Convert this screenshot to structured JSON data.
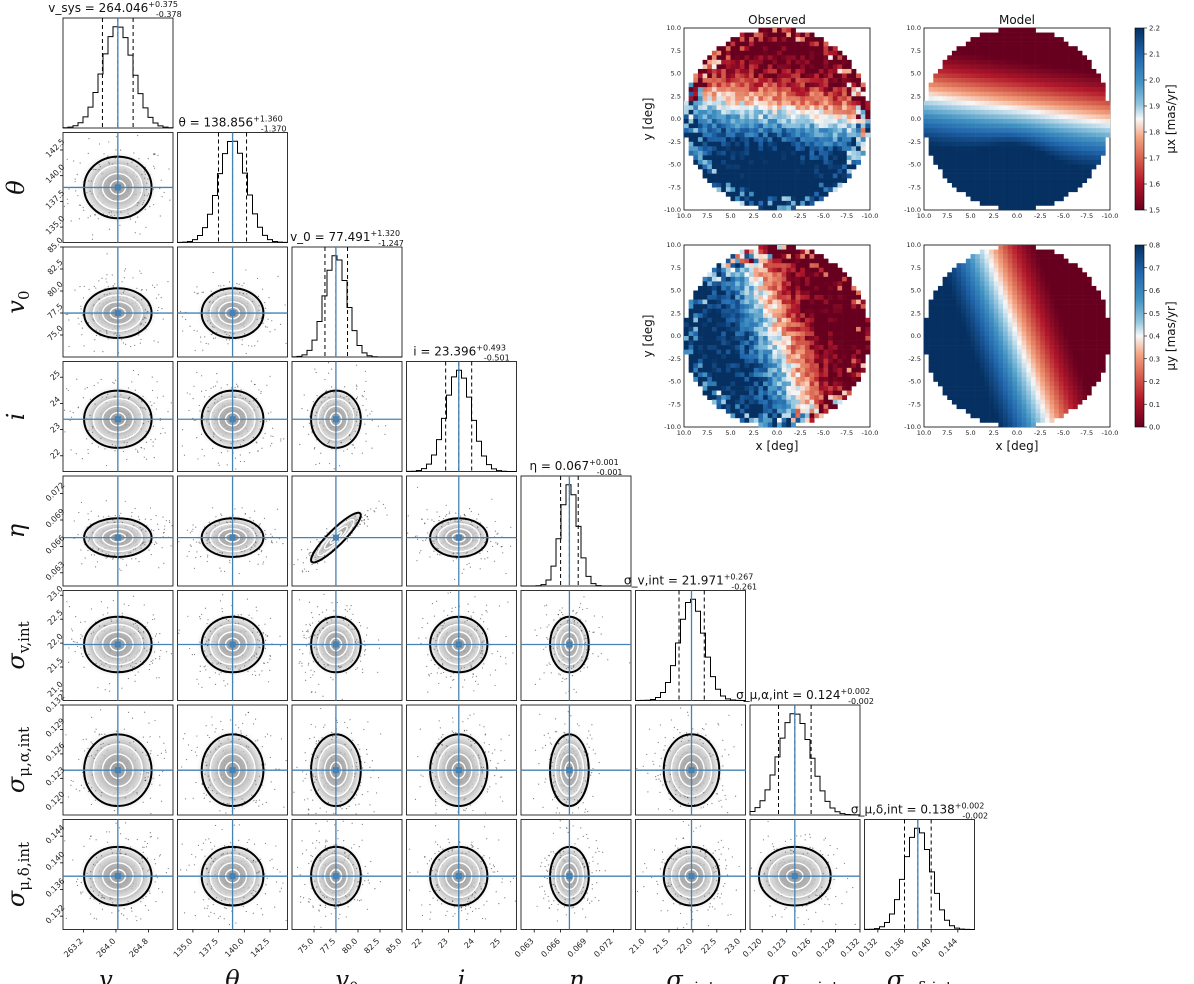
{
  "chart_data": [
    {
      "type": "scatter",
      "kind": "corner-plot",
      "parameters": [
        {
          "label": "v_sys",
          "median": 264.046,
          "plus": 0.375,
          "minus": 0.378,
          "title": "v_sys = 264.046 +0.375 -0.378",
          "range": [
            262.7,
            265.4
          ],
          "ticks": [
            "263.2",
            "264.0",
            "264.8"
          ],
          "tick_values": [
            263.2,
            264.0,
            264.8
          ]
        },
        {
          "label": "θ",
          "median": 138.856,
          "plus": 1.36,
          "minus": 1.37,
          "title": "θ = 138.856 +1.360 -1.370",
          "range": [
            133.5,
            144.2
          ],
          "ticks": [
            "135.0",
            "137.5",
            "140.0",
            "142.5"
          ],
          "tick_values": [
            135.0,
            137.5,
            140.0,
            142.5
          ]
        },
        {
          "label": "v_0",
          "median": 77.491,
          "plus": 1.32,
          "minus": 1.247,
          "title": "v_0 = 77.491 +1.320 -1.247",
          "range": [
            72.5,
            85.0
          ],
          "ticks": [
            "75.0",
            "77.5",
            "80.0",
            "82.5",
            "85.0"
          ],
          "tick_values": [
            75.0,
            77.5,
            80.0,
            82.5,
            85.0
          ]
        },
        {
          "label": "i",
          "median": 23.396,
          "plus": 0.493,
          "minus": 0.501,
          "title": "i = 23.396 +0.493 -0.501",
          "range": [
            21.4,
            25.6
          ],
          "ticks": [
            "22",
            "23",
            "24",
            "25"
          ],
          "tick_values": [
            22,
            23,
            24,
            25
          ]
        },
        {
          "label": "η",
          "median": 0.067,
          "plus": 0.001,
          "minus": 0.001,
          "title": "η = 0.067 +0.001 -0.001",
          "range": [
            0.0615,
            0.074
          ],
          "ticks": [
            "0.063",
            "0.066",
            "0.069",
            "0.072"
          ],
          "tick_values": [
            0.063,
            0.066,
            0.069,
            0.072
          ]
        },
        {
          "label": "σ_v,int",
          "median": 21.971,
          "plus": 0.267,
          "minus": 0.261,
          "title": "σ_v,int = 21.971 +0.267 -0.261",
          "range": [
            20.8,
            23.1
          ],
          "ticks": [
            "21.0",
            "21.5",
            "22.0",
            "22.5",
            "23.0"
          ],
          "tick_values": [
            21.0,
            21.5,
            22.0,
            22.5,
            23.0
          ]
        },
        {
          "label": "σ_μ,α,int",
          "median": 0.124,
          "plus": 0.002,
          "minus": 0.002,
          "title": "σ_μ,α,int = 0.124 +0.002 -0.002",
          "range": [
            0.1185,
            0.132
          ],
          "ticks": [
            "0.120",
            "0.123",
            "0.126",
            "0.129",
            "0.132"
          ],
          "tick_values": [
            0.12,
            0.123,
            0.126,
            0.129,
            0.132
          ]
        },
        {
          "label": "σ_μ,δ,int",
          "median": 0.138,
          "plus": 0.002,
          "minus": 0.002,
          "title": "σ_μ,δ,int = 0.138 +0.002 -0.002",
          "range": [
            0.13,
            0.1465
          ],
          "ticks": [
            "0.132",
            "0.136",
            "0.140",
            "0.144"
          ],
          "tick_values": [
            0.132,
            0.136,
            0.14,
            0.144
          ]
        }
      ],
      "correlations": [
        {
          "x": "v_0",
          "y": "η",
          "value": 0.9
        }
      ],
      "truth_line_color": "#4682b4"
    },
    {
      "type": "heatmap",
      "kind": "proper-motion-maps",
      "titles": [
        "Observed",
        "Model"
      ],
      "xlabel": "x [deg]",
      "ylabel": "y [deg]",
      "x_ticks": [
        "10.0",
        "7.5",
        "5.0",
        "2.5",
        "0.0",
        "-2.5",
        "-5.0",
        "-7.5",
        "-10.0"
      ],
      "y_ticks": [
        "10.0",
        "7.5",
        "5.0",
        "2.5",
        "0.0",
        "-2.5",
        "-5.0",
        "-7.5",
        "-10.0"
      ],
      "xlim": [
        10.0,
        -10.0
      ],
      "ylim": [
        -10.0,
        10.0
      ],
      "colormap": "RdBu",
      "panels": [
        {
          "row": "mu_x",
          "colorbar_label": "μx [mas/yr]",
          "clim": [
            1.5,
            2.2
          ],
          "colorbar_ticks": [
            "2.2",
            "2.1",
            "2.0",
            "1.9",
            "1.8",
            "1.7",
            "1.6",
            "1.5"
          ]
        },
        {
          "row": "mu_y",
          "colorbar_label": "μy [mas/yr]",
          "clim": [
            0.0,
            0.8
          ],
          "colorbar_ticks": [
            "0.8",
            "0.7",
            "0.6",
            "0.5",
            "0.4",
            "0.3",
            "0.2",
            "0.1",
            "0.0"
          ]
        }
      ]
    }
  ]
}
